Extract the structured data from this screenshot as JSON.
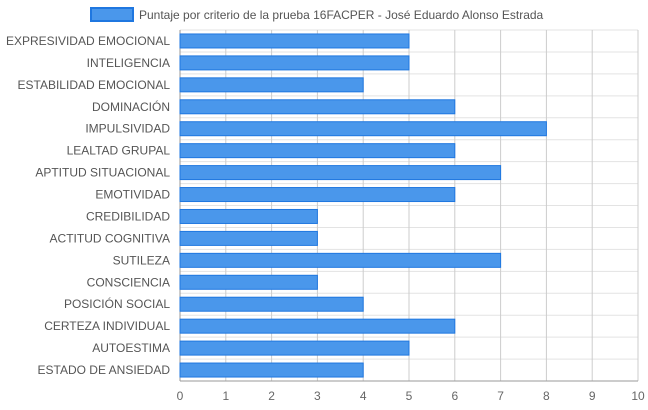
{
  "chart_data": {
    "type": "bar",
    "orientation": "horizontal",
    "categories": [
      "EXPRESIVIDAD EMOCIONAL",
      "INTELIGENCIA",
      "ESTABILIDAD EMOCIONAL",
      "DOMINACIÓN",
      "IMPULSIVIDAD",
      "LEALTAD GRUPAL",
      "APTITUD SITUACIONAL",
      "EMOTIVIDAD",
      "CREDIBILIDAD",
      "ACTITUD COGNITIVA",
      "SUTILEZA",
      "CONSCIENCIA",
      "POSICIÓN SOCIAL",
      "CERTEZA INDIVIDUAL",
      "AUTOESTIMA",
      "ESTADO DE ANSIEDAD"
    ],
    "series": [
      {
        "name": "Puntaje por criterio de la prueba 16FACPER - José Eduardo Alonso Estrada",
        "values": [
          5,
          5,
          4,
          6,
          8,
          6,
          7,
          6,
          3,
          3,
          7,
          3,
          4,
          6,
          5,
          4
        ]
      }
    ],
    "xlim": [
      0,
      10
    ],
    "x_ticks": [
      "0",
      "1",
      "2",
      "3",
      "4",
      "5",
      "6",
      "7",
      "8",
      "9",
      "10"
    ],
    "grid": true,
    "legend_position": "top",
    "colors": {
      "bar_fill": "#4a97eb",
      "bar_stroke": "#1f77e0"
    }
  }
}
